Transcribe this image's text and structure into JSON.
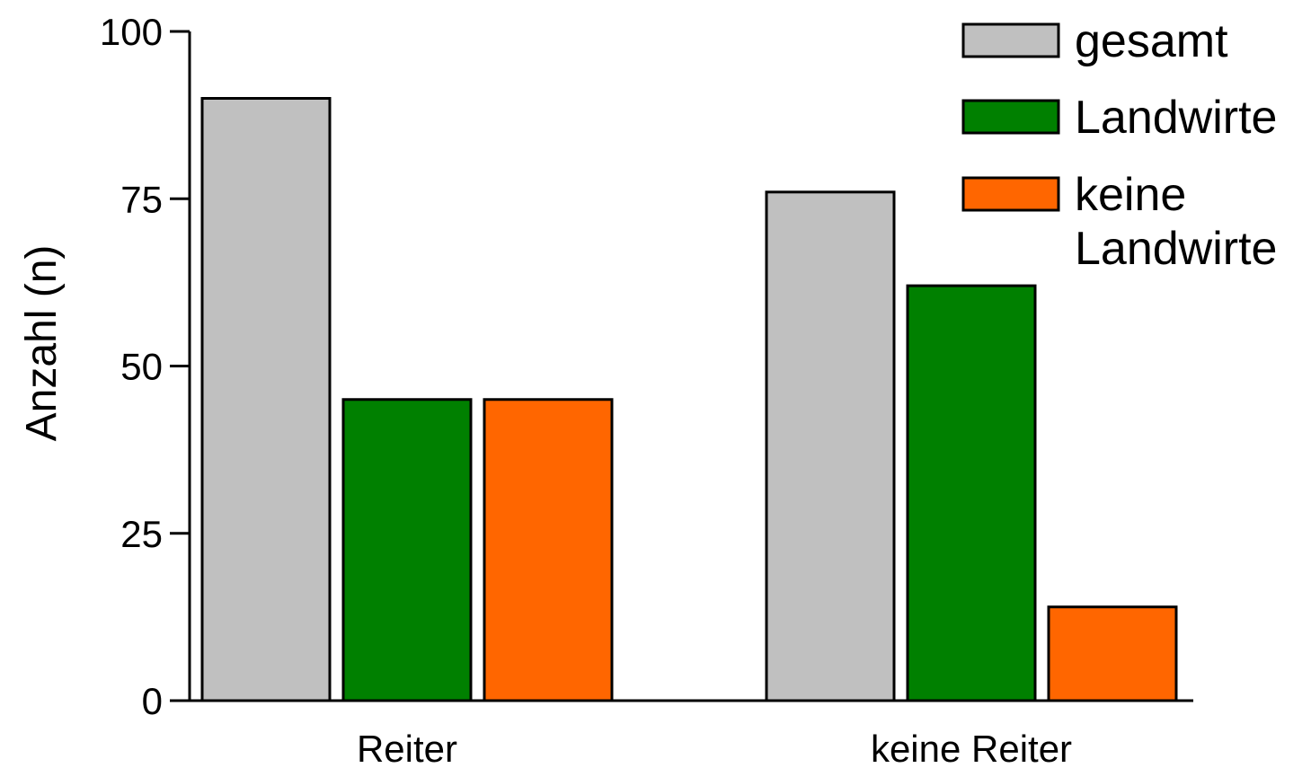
{
  "chart_data": {
    "type": "bar",
    "categories": [
      "Reiter",
      "keine Reiter"
    ],
    "series": [
      {
        "name": "gesamt",
        "values": [
          90,
          76
        ],
        "color": "#c0c0c0"
      },
      {
        "name": "Landwirte",
        "values": [
          45,
          62
        ],
        "color": "#008000"
      },
      {
        "name": "keine Landwirte",
        "values": [
          45,
          14
        ],
        "color": "#ff6600"
      }
    ],
    "title": "",
    "xlabel": "",
    "ylabel": "Anzahl (n)",
    "ylim": [
      0,
      100
    ],
    "yticks": [
      0,
      25,
      50,
      75,
      100
    ],
    "grid": false,
    "legend_position": "top-right"
  },
  "legend": {
    "items": [
      {
        "lines": [
          "gesamt"
        ]
      },
      {
        "lines": [
          "Landwirte"
        ]
      },
      {
        "lines": [
          "keine",
          "Landwirte"
        ]
      }
    ]
  }
}
